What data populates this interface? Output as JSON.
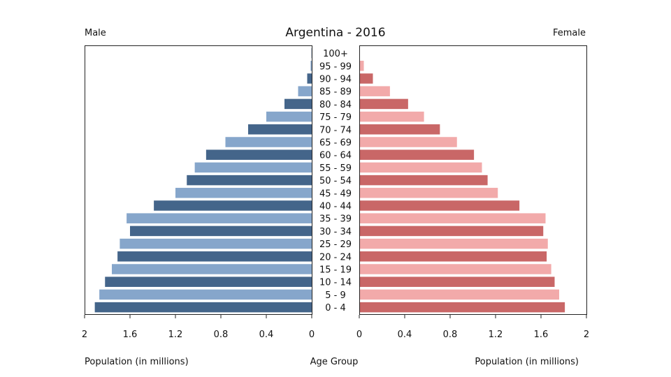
{
  "chart_data": {
    "type": "bar",
    "title": "Argentina - 2016",
    "left_label": "Male",
    "right_label": "Female",
    "xlabel_left": "Population (in millions)",
    "xlabel_center": "Age Group",
    "xlabel_right": "Population (in millions)",
    "xlim": [
      0,
      2
    ],
    "tick_values": [
      0,
      0.4,
      0.8,
      1.2,
      1.6,
      2
    ],
    "tick_labels": [
      "0",
      "0.4",
      "0.8",
      "1.2",
      "1.6",
      "2"
    ],
    "categories": [
      "100+",
      "95 - 99",
      "90 - 94",
      "85 - 89",
      "80 - 84",
      "75 - 79",
      "70 - 74",
      "65 - 69",
      "60 - 64",
      "55 - 59",
      "50 - 54",
      "45 - 49",
      "40 - 44",
      "35 - 39",
      "30 - 34",
      "25 - 29",
      "20 - 24",
      "15 - 19",
      "10 - 14",
      "5 - 9",
      "0 - 4"
    ],
    "series": [
      {
        "name": "Male",
        "colors": [
          "#44658a",
          "#86a6cb"
        ],
        "values": [
          0.002,
          0.01,
          0.04,
          0.12,
          0.24,
          0.4,
          0.56,
          0.76,
          0.93,
          1.03,
          1.1,
          1.2,
          1.39,
          1.63,
          1.6,
          1.69,
          1.71,
          1.76,
          1.82,
          1.87,
          1.91
        ]
      },
      {
        "name": "Female",
        "colors": [
          "#c96767",
          "#f2aaaa"
        ],
        "values": [
          0.004,
          0.04,
          0.12,
          0.27,
          0.43,
          0.57,
          0.71,
          0.86,
          1.01,
          1.08,
          1.13,
          1.22,
          1.41,
          1.64,
          1.62,
          1.66,
          1.65,
          1.69,
          1.72,
          1.76,
          1.81
        ]
      }
    ]
  }
}
